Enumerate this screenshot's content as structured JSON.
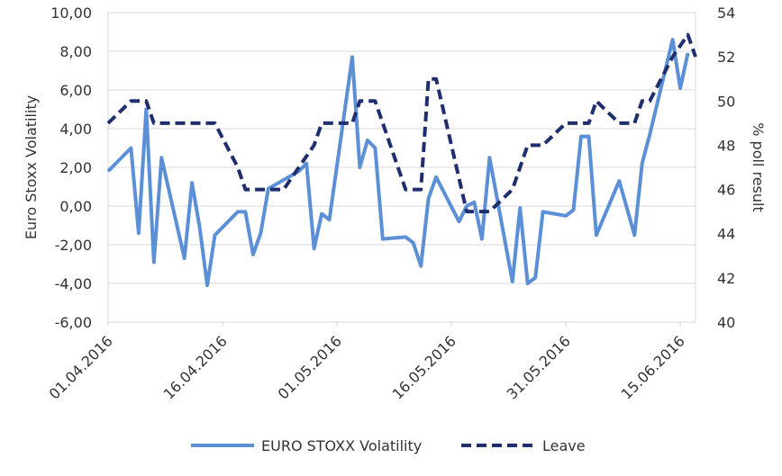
{
  "chart_data": {
    "type": "line",
    "title": "",
    "y_left": {
      "label": "Euro Stoxx Volatility",
      "min": -6,
      "max": 10,
      "step": 2,
      "tick_labels": [
        "-6,00",
        "-4,00",
        "-2,00",
        "0,00",
        "2,00",
        "4,00",
        "6,00",
        "8,00",
        "10,00"
      ]
    },
    "y_right": {
      "label": "% poll result",
      "min": 40,
      "max": 54,
      "step": 2,
      "tick_labels": [
        "40",
        "42",
        "44",
        "46",
        "48",
        "50",
        "52",
        "54"
      ]
    },
    "x_axis": {
      "start": "2016-04-01",
      "end": "2016-06-17",
      "tick_dates": [
        "2016-04-01",
        "2016-04-16",
        "2016-05-01",
        "2016-05-16",
        "2016-05-31",
        "2016-06-15"
      ],
      "tick_labels": [
        "01.04.2016",
        "16.04.2016",
        "01.05.2016",
        "16.05.2016",
        "31.05.2016",
        "15.06.2016"
      ]
    },
    "grid": true,
    "legend_position": "bottom",
    "series": [
      {
        "name": "EURO STOXX Volatility",
        "axis": "left",
        "color": "#5b8fd6",
        "style": "solid",
        "points": [
          [
            "2016-04-01",
            1.8
          ],
          [
            "2016-04-04",
            3.0
          ],
          [
            "2016-04-05",
            -1.4
          ],
          [
            "2016-04-06",
            5.0
          ],
          [
            "2016-04-07",
            -2.9
          ],
          [
            "2016-04-08",
            2.5
          ],
          [
            "2016-04-11",
            -2.7
          ],
          [
            "2016-04-12",
            1.2
          ],
          [
            "2016-04-13",
            -1.1
          ],
          [
            "2016-04-14",
            -4.1
          ],
          [
            "2016-04-15",
            -1.5
          ],
          [
            "2016-04-18",
            -0.3
          ],
          [
            "2016-04-19",
            -0.3
          ],
          [
            "2016-04-20",
            -2.5
          ],
          [
            "2016-04-21",
            -1.4
          ],
          [
            "2016-04-22",
            0.9
          ],
          [
            "2016-04-26",
            1.8
          ],
          [
            "2016-04-27",
            2.2
          ],
          [
            "2016-04-28",
            -2.2
          ],
          [
            "2016-04-29",
            -0.4
          ],
          [
            "2016-04-30",
            -0.7
          ],
          [
            "2016-05-03",
            7.7
          ],
          [
            "2016-05-04",
            2.0
          ],
          [
            "2016-05-05",
            3.4
          ],
          [
            "2016-05-06",
            3.0
          ],
          [
            "2016-05-07",
            -1.7
          ],
          [
            "2016-05-10",
            -1.6
          ],
          [
            "2016-05-11",
            -1.9
          ],
          [
            "2016-05-12",
            -3.1
          ],
          [
            "2016-05-13",
            0.4
          ],
          [
            "2016-05-14",
            1.5
          ],
          [
            "2016-05-17",
            -0.8
          ],
          [
            "2016-05-18",
            0.0
          ],
          [
            "2016-05-19",
            0.2
          ],
          [
            "2016-05-20",
            -1.7
          ],
          [
            "2016-05-21",
            2.5
          ],
          [
            "2016-05-24",
            -3.9
          ],
          [
            "2016-05-25",
            -0.1
          ],
          [
            "2016-05-26",
            -4.0
          ],
          [
            "2016-05-27",
            -3.7
          ],
          [
            "2016-05-28",
            -0.3
          ],
          [
            "2016-05-31",
            -0.5
          ],
          [
            "2016-06-01",
            -0.2
          ],
          [
            "2016-06-02",
            3.6
          ],
          [
            "2016-06-03",
            3.6
          ],
          [
            "2016-06-04",
            -1.5
          ],
          [
            "2016-06-07",
            1.3
          ],
          [
            "2016-06-09",
            -1.5
          ],
          [
            "2016-06-10",
            2.2
          ],
          [
            "2016-06-11",
            3.7
          ],
          [
            "2016-06-14",
            8.6
          ],
          [
            "2016-06-15",
            6.1
          ],
          [
            "2016-06-16",
            7.9
          ]
        ]
      },
      {
        "name": "Leave",
        "axis": "right",
        "color": "#1f2f6e",
        "style": "dashed",
        "points": [
          [
            "2016-04-01",
            49.0
          ],
          [
            "2016-04-04",
            50.0
          ],
          [
            "2016-04-06",
            50.0
          ],
          [
            "2016-04-07",
            49.0
          ],
          [
            "2016-04-08",
            49.0
          ],
          [
            "2016-04-15",
            49.0
          ],
          [
            "2016-04-18",
            47.0
          ],
          [
            "2016-04-19",
            46.0
          ],
          [
            "2016-04-24",
            46.0
          ],
          [
            "2016-04-28",
            48.0
          ],
          [
            "2016-04-29",
            49.0
          ],
          [
            "2016-05-03",
            49.0
          ],
          [
            "2016-05-04",
            50.0
          ],
          [
            "2016-05-06",
            50.0
          ],
          [
            "2016-05-10",
            46.0
          ],
          [
            "2016-05-12",
            46.0
          ],
          [
            "2016-05-13",
            51.0
          ],
          [
            "2016-05-14",
            51.0
          ],
          [
            "2016-05-18",
            45.0
          ],
          [
            "2016-05-21",
            45.0
          ],
          [
            "2016-05-24",
            46.0
          ],
          [
            "2016-05-26",
            48.0
          ],
          [
            "2016-05-28",
            48.0
          ],
          [
            "2016-05-31",
            49.0
          ],
          [
            "2016-06-03",
            49.0
          ],
          [
            "2016-06-04",
            50.0
          ],
          [
            "2016-06-07",
            49.0
          ],
          [
            "2016-06-09",
            49.0
          ],
          [
            "2016-06-10",
            50.0
          ],
          [
            "2016-06-11",
            50.0
          ],
          [
            "2016-06-14",
            52.0
          ],
          [
            "2016-06-16",
            53.0
          ],
          [
            "2016-06-17",
            52.0
          ]
        ]
      }
    ]
  }
}
